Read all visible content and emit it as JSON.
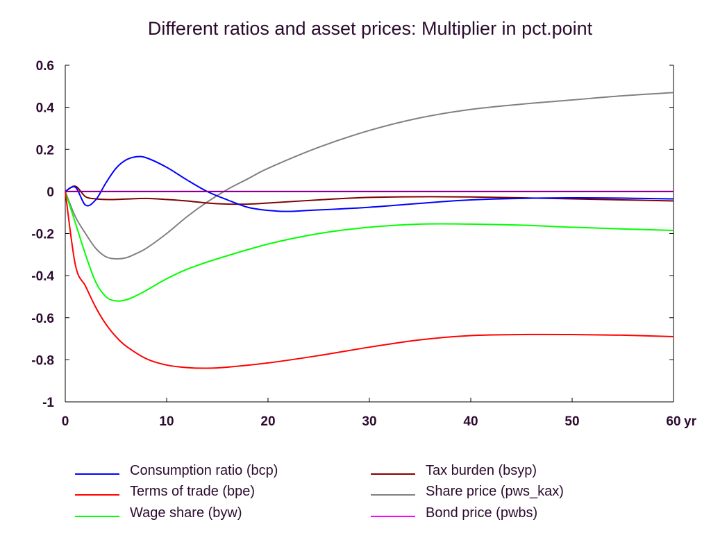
{
  "chart_data": {
    "type": "line",
    "title": "Different ratios and asset prices: Multiplier in pct.point",
    "xlabel": "",
    "ylabel": "",
    "x_unit_label": "yr",
    "xlim": [
      0,
      60
    ],
    "ylim": [
      -1,
      0.6
    ],
    "x_ticks": [
      0,
      10,
      20,
      30,
      40,
      50,
      60
    ],
    "x_tick_labels": [
      "0",
      "10",
      "20",
      "30",
      "40",
      "50",
      "60"
    ],
    "y_ticks": [
      0.6,
      0.4,
      0.2,
      0,
      -0.2,
      -0.4,
      -0.6,
      -0.8,
      -1
    ],
    "y_tick_labels": [
      "0.6",
      "0.4",
      "0.2",
      "0",
      "-0.2",
      "-0.4",
      "-0.6",
      "-0.8",
      "-1"
    ],
    "grid": false,
    "legend_position": "bottom",
    "series": [
      {
        "name": "Consumption ratio (bcp)",
        "color": "#0000ff",
        "x": [
          0,
          1,
          2,
          3,
          4,
          5,
          6,
          7,
          8,
          10,
          12,
          14,
          16,
          18,
          20,
          22,
          24,
          30,
          40,
          50,
          60
        ],
        "y": [
          0,
          0.02,
          -0.065,
          -0.04,
          0.04,
          0.11,
          0.15,
          0.165,
          0.16,
          0.115,
          0.055,
          0.0,
          -0.04,
          -0.075,
          -0.09,
          -0.095,
          -0.09,
          -0.075,
          -0.04,
          -0.03,
          -0.035
        ]
      },
      {
        "name": "Terms of trade (bpe)",
        "color": "#ff0000",
        "x": [
          0,
          1,
          2,
          3,
          4,
          5,
          6,
          8,
          10,
          12,
          14,
          16,
          20,
          25,
          30,
          35,
          40,
          45,
          50,
          55,
          60
        ],
        "y": [
          0,
          -0.35,
          -0.45,
          -0.55,
          -0.63,
          -0.69,
          -0.735,
          -0.795,
          -0.825,
          -0.837,
          -0.84,
          -0.835,
          -0.815,
          -0.78,
          -0.74,
          -0.705,
          -0.685,
          -0.68,
          -0.68,
          -0.683,
          -0.69
        ]
      },
      {
        "name": "Wage share (byw)",
        "color": "#00ff00",
        "x": [
          0,
          1,
          2,
          3,
          4,
          5,
          6,
          7,
          8,
          10,
          12,
          15,
          20,
          25,
          30,
          35,
          40,
          45,
          50,
          55,
          60
        ],
        "y": [
          0,
          -0.15,
          -0.3,
          -0.43,
          -0.5,
          -0.52,
          -0.515,
          -0.495,
          -0.47,
          -0.415,
          -0.37,
          -0.32,
          -0.25,
          -0.2,
          -0.17,
          -0.155,
          -0.155,
          -0.16,
          -0.17,
          -0.178,
          -0.185
        ]
      },
      {
        "name": "Tax burden (bsyp)",
        "color": "#800000",
        "x": [
          0,
          1,
          2,
          3,
          4,
          5,
          6,
          8,
          10,
          12,
          14,
          16,
          18,
          20,
          25,
          30,
          35,
          40,
          45,
          50,
          55,
          60
        ],
        "y": [
          0,
          0.025,
          -0.025,
          -0.035,
          -0.038,
          -0.038,
          -0.036,
          -0.033,
          -0.038,
          -0.045,
          -0.055,
          -0.06,
          -0.06,
          -0.055,
          -0.04,
          -0.028,
          -0.025,
          -0.026,
          -0.03,
          -0.035,
          -0.04,
          -0.045
        ]
      },
      {
        "name": "Share price (pws_kax)",
        "color": "#808080",
        "x": [
          0,
          1,
          2,
          3,
          4,
          5,
          6,
          7,
          8,
          10,
          12,
          14,
          16,
          18,
          20,
          25,
          30,
          35,
          40,
          45,
          50,
          55,
          60
        ],
        "y": [
          0,
          -0.12,
          -0.2,
          -0.27,
          -0.31,
          -0.32,
          -0.315,
          -0.295,
          -0.27,
          -0.2,
          -0.12,
          -0.05,
          0.01,
          0.06,
          0.11,
          0.21,
          0.29,
          0.35,
          0.39,
          0.415,
          0.435,
          0.455,
          0.47
        ]
      },
      {
        "name": "Bond price (pwbs)",
        "color": "#ff00ff",
        "x": [
          0,
          60
        ],
        "y": [
          0,
          0
        ]
      },
      {
        "name": "",
        "color": "#800080",
        "x": [
          0,
          60
        ],
        "y": [
          0,
          0
        ]
      }
    ]
  }
}
